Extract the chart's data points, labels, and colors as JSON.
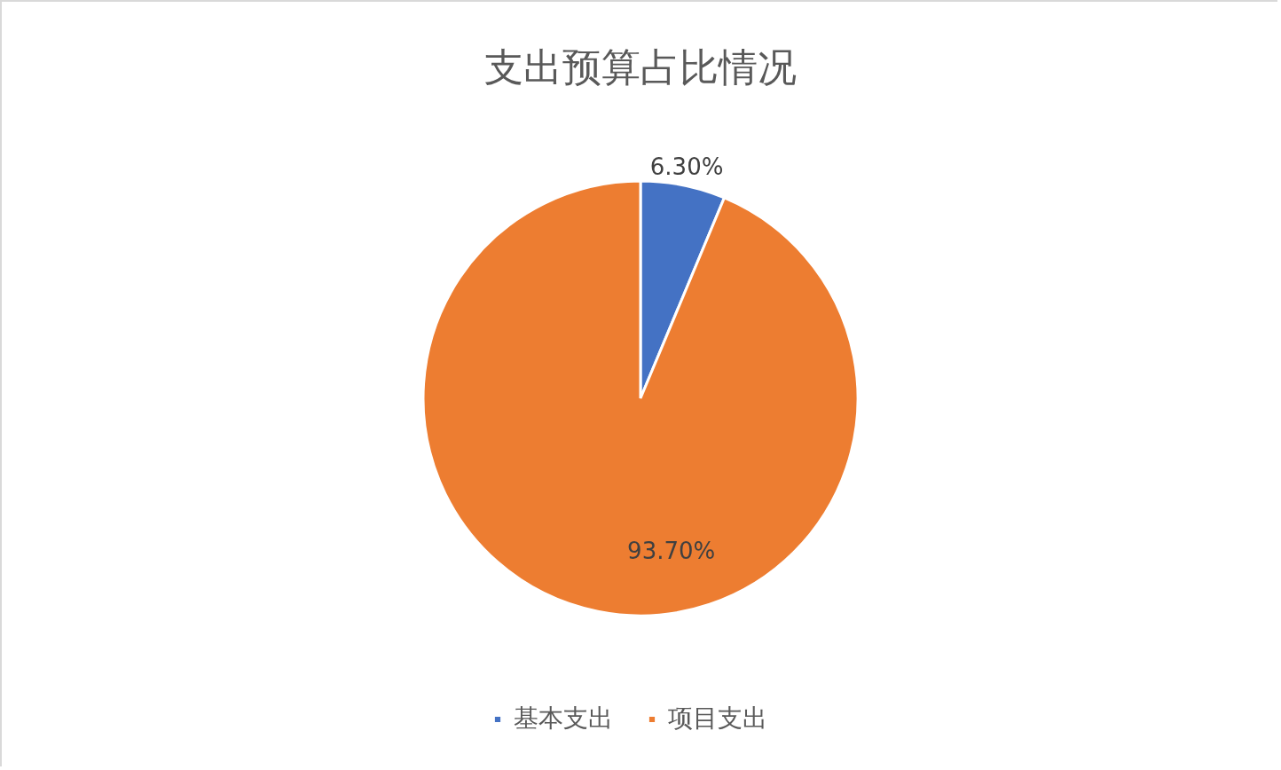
{
  "chart_data": {
    "type": "pie",
    "title": "支出预算占比情况",
    "categories": [
      "基本支出",
      "项目支出"
    ],
    "values": [
      6.3,
      93.7
    ],
    "colors": [
      "#4472c4",
      "#ed7d31"
    ],
    "value_labels": [
      "6.30%",
      "93.70%"
    ],
    "legend": "bottom"
  }
}
